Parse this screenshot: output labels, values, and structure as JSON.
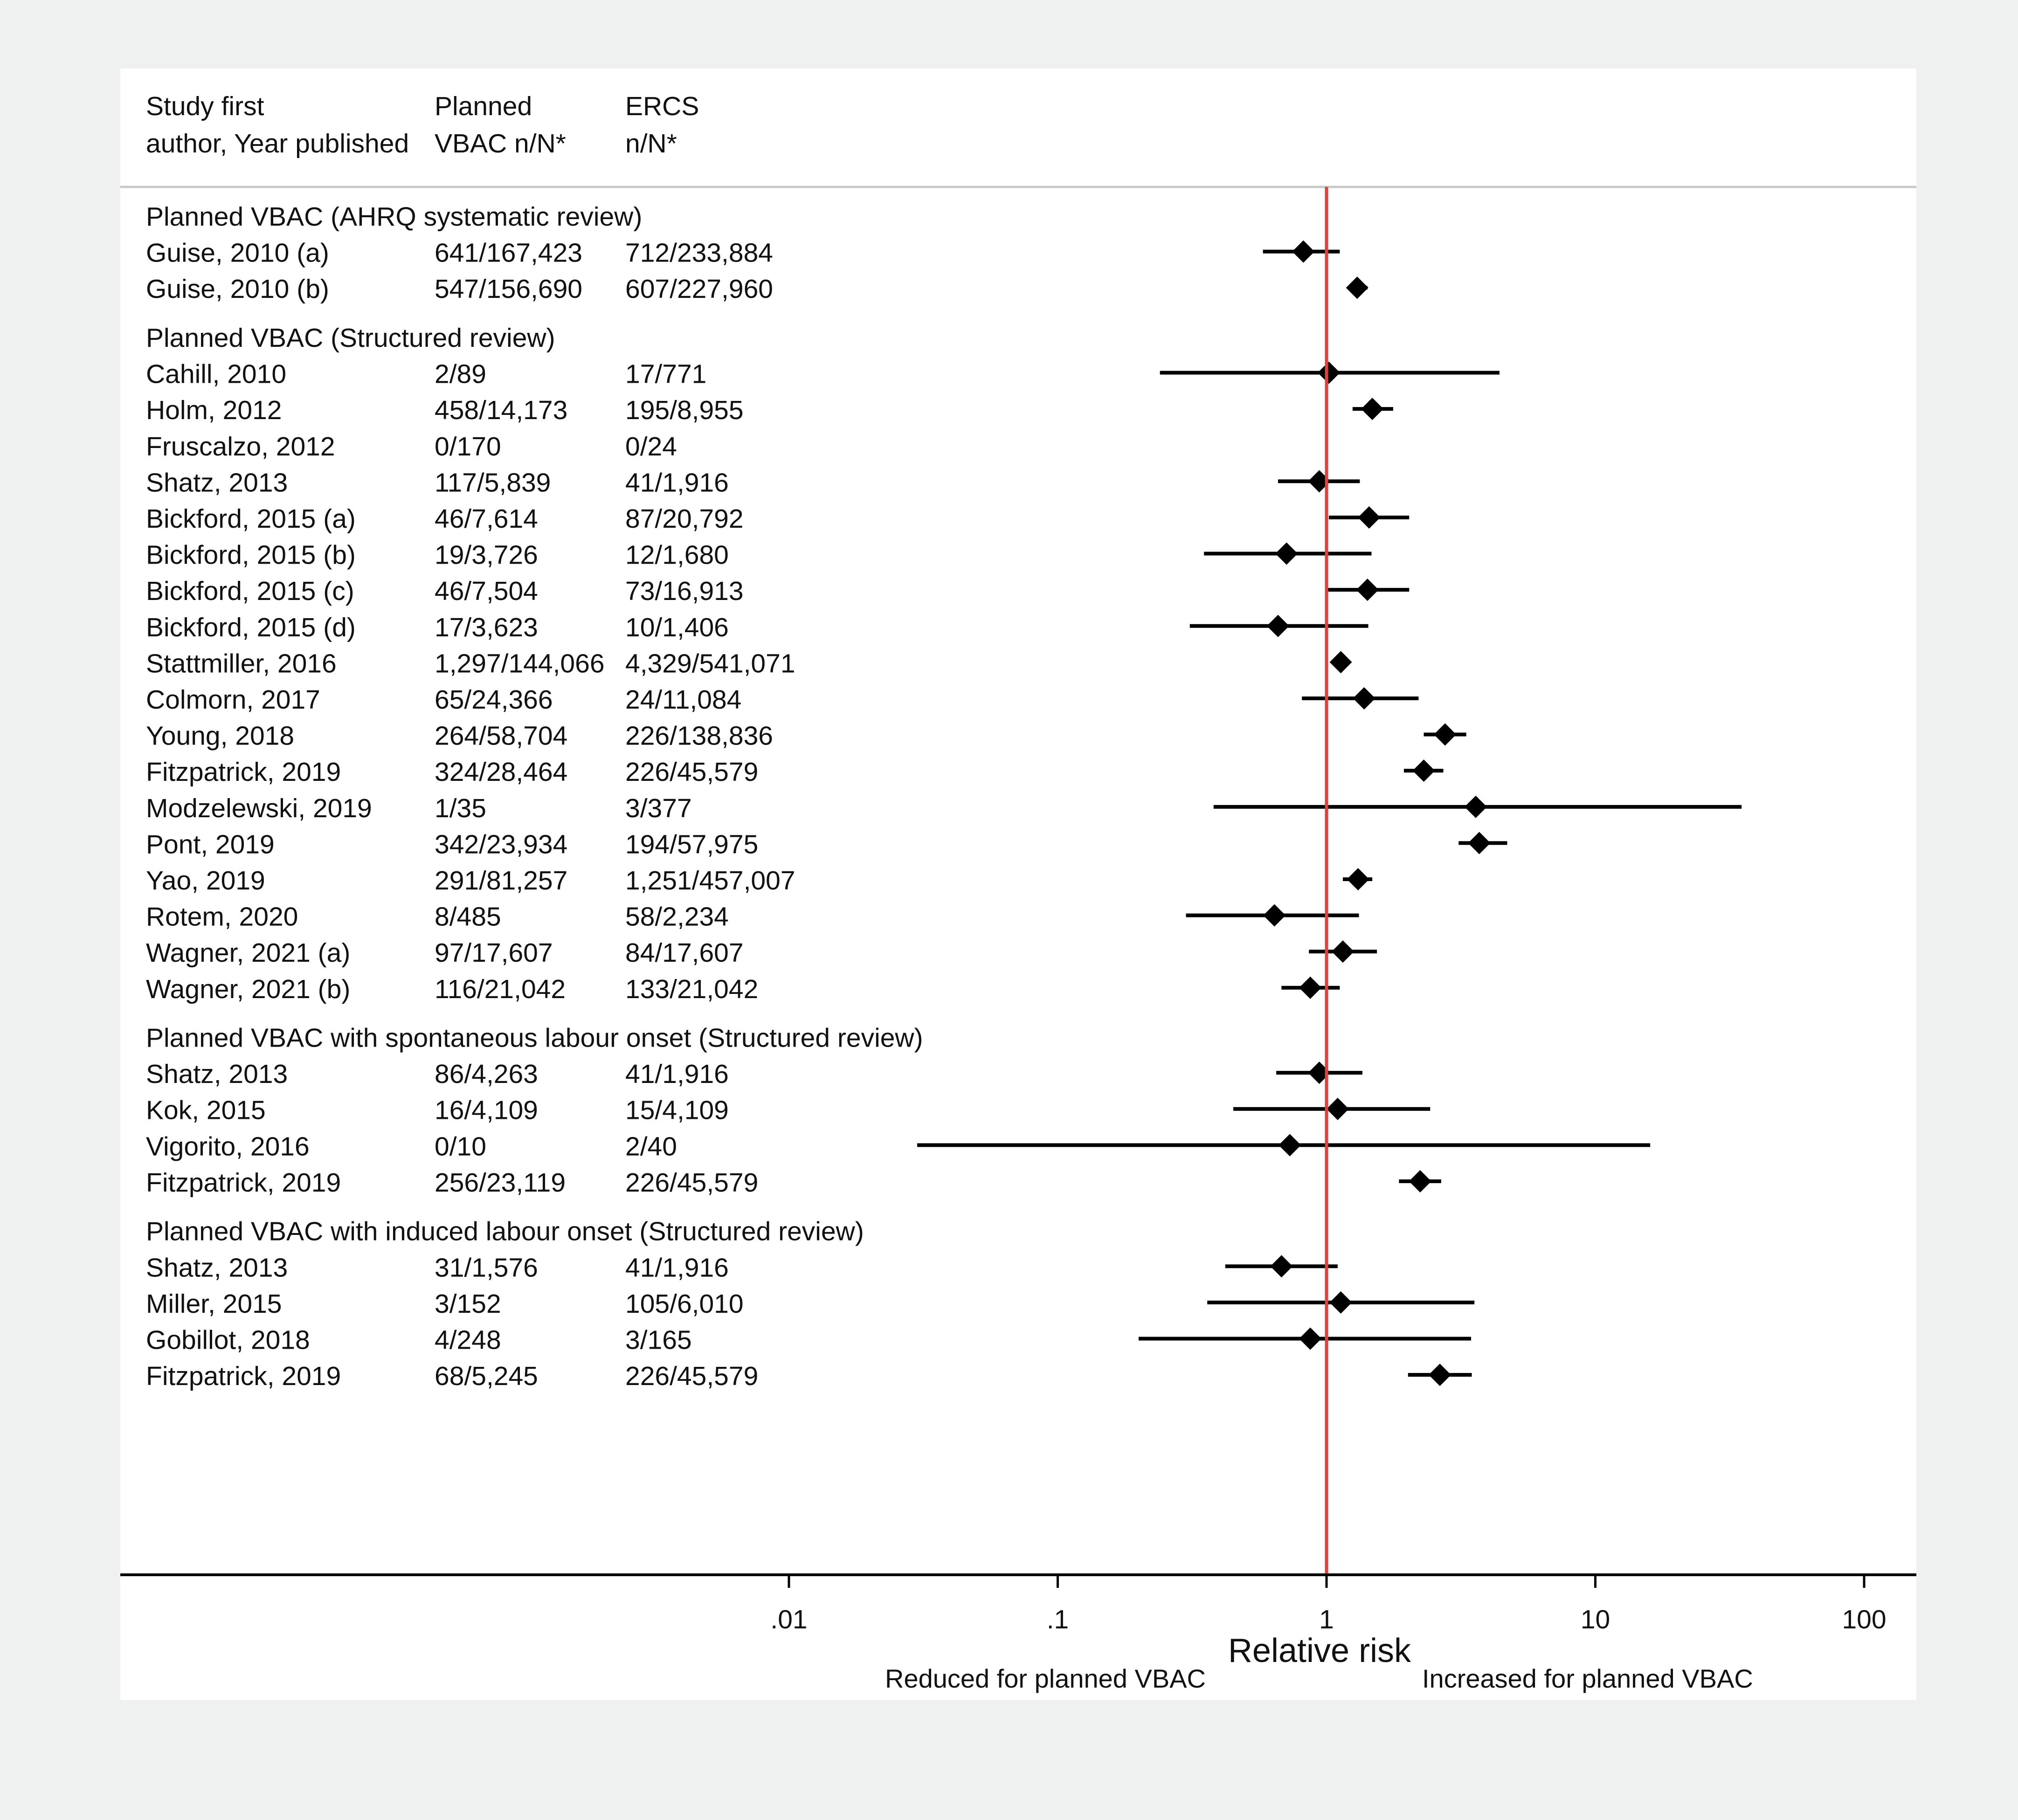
{
  "colors": {
    "outer_background": "#eef1f0",
    "panel_background": "#ffffff",
    "reference_line": "#d9443b",
    "marker": "#000000",
    "header_rule": "#c8c8c8"
  },
  "chart_data": {
    "type": "forest",
    "scale": "log",
    "xlim": [
      0.01,
      100
    ],
    "xlabel": "Relative risk",
    "xticks": [
      {
        "value": 0.01,
        "label": ".01"
      },
      {
        "value": 0.1,
        "label": ".1"
      },
      {
        "value": 1,
        "label": "1"
      },
      {
        "value": 10,
        "label": "10"
      },
      {
        "value": 100,
        "label": "100"
      }
    ],
    "reference_value": 1,
    "direction_labels": {
      "left": "Reduced for planned VBAC",
      "right": "Increased for planned VBAC"
    },
    "header": {
      "col1": [
        "Study first",
        "author, Year published"
      ],
      "col2": [
        "Planned",
        "VBAC n/N*"
      ],
      "col3": [
        "ERCS",
        "n/N*"
      ]
    },
    "groups": [
      {
        "title": "Planned VBAC (AHRQ systematic review)",
        "studies": [
          {
            "study": "Guise, 2010 (a)",
            "vbac": "641/167,423",
            "ercs": "712/233,884",
            "rr": 0.82,
            "lo": 0.58,
            "hi": 1.12
          },
          {
            "study": "Guise, 2010 (b)",
            "vbac": "547/156,690",
            "ercs": "607/227,960",
            "rr": 1.3,
            "lo": 1.2,
            "hi": 1.42
          }
        ]
      },
      {
        "title": "Planned VBAC (Structured review)",
        "studies": [
          {
            "study": "Cahill, 2010",
            "vbac": "2/89",
            "ercs": "17/771",
            "rr": 1.02,
            "lo": 0.24,
            "hi": 4.4
          },
          {
            "study": "Holm, 2012",
            "vbac": "458/14,173",
            "ercs": "195/8,955",
            "rr": 1.48,
            "lo": 1.25,
            "hi": 1.77
          },
          {
            "study": "Fruscalzo, 2012",
            "vbac": "0/170",
            "ercs": "0/24"
          },
          {
            "study": "Shatz, 2013",
            "vbac": "117/5,839",
            "ercs": "41/1,916",
            "rr": 0.94,
            "lo": 0.66,
            "hi": 1.33
          },
          {
            "study": "Bickford, 2015 (a)",
            "vbac": "46/7,614",
            "ercs": "87/20,792",
            "rr": 1.44,
            "lo": 1.02,
            "hi": 2.03
          },
          {
            "study": "Bickford, 2015 (b)",
            "vbac": "19/3,726",
            "ercs": "12/1,680",
            "rr": 0.71,
            "lo": 0.35,
            "hi": 1.47
          },
          {
            "study": "Bickford, 2015 (c)",
            "vbac": "46/7,504",
            "ercs": "73/16,913",
            "rr": 1.42,
            "lo": 0.99,
            "hi": 2.03
          },
          {
            "study": "Bickford, 2015 (d)",
            "vbac": "17/3,623",
            "ercs": "10/1,406",
            "rr": 0.66,
            "lo": 0.31,
            "hi": 1.43
          },
          {
            "study": "Stattmiller, 2016",
            "vbac": "1,297/144,066",
            "ercs": "4,329/541,071",
            "rr": 1.13,
            "lo": 1.06,
            "hi": 1.2
          },
          {
            "study": "Colmorn, 2017",
            "vbac": "65/24,366",
            "ercs": "24/11,084",
            "rr": 1.38,
            "lo": 0.81,
            "hi": 2.2
          },
          {
            "study": "Young, 2018",
            "vbac": "264/58,704",
            "ercs": "226/138,836",
            "rr": 2.76,
            "lo": 2.3,
            "hi": 3.31
          },
          {
            "study": "Fitzpatrick, 2019",
            "vbac": "324/28,464",
            "ercs": "226/45,579",
            "rr": 2.3,
            "lo": 1.94,
            "hi": 2.72
          },
          {
            "study": "Modzelewski, 2019",
            "vbac": "1/35",
            "ercs": "3/377",
            "rr": 3.59,
            "lo": 0.38,
            "hi": 35.0
          },
          {
            "study": "Pont, 2019",
            "vbac": "342/23,934",
            "ercs": "194/57,975",
            "rr": 3.7,
            "lo": 3.1,
            "hi": 4.7
          },
          {
            "study": "Yao, 2019",
            "vbac": "291/81,257",
            "ercs": "1,251/457,007",
            "rr": 1.31,
            "lo": 1.15,
            "hi": 1.48
          },
          {
            "study": "Rotem, 2020",
            "vbac": "8/485",
            "ercs": "58/2,234",
            "rr": 0.64,
            "lo": 0.3,
            "hi": 1.32
          },
          {
            "study": "Wagner, 2021 (a)",
            "vbac": "97/17,607",
            "ercs": "84/17,607",
            "rr": 1.15,
            "lo": 0.86,
            "hi": 1.54
          },
          {
            "study": "Wagner, 2021 (b)",
            "vbac": "116/21,042",
            "ercs": "133/21,042",
            "rr": 0.87,
            "lo": 0.68,
            "hi": 1.12
          }
        ]
      },
      {
        "title": "Planned VBAC with spontaneous labour onset (Structured review)",
        "studies": [
          {
            "study": "Shatz, 2013",
            "vbac": "86/4,263",
            "ercs": "41/1,916",
            "rr": 0.94,
            "lo": 0.65,
            "hi": 1.36
          },
          {
            "study": "Kok, 2015",
            "vbac": "16/4,109",
            "ercs": "15/4,109",
            "rr": 1.1,
            "lo": 0.45,
            "hi": 2.43
          },
          {
            "study": "Vigorito, 2016",
            "vbac": "0/10",
            "ercs": "2/40",
            "rr": 0.73,
            "lo": 0.03,
            "hi": 16.0
          },
          {
            "study": "Fitzpatrick, 2019",
            "vbac": "256/23,119",
            "ercs": "226/45,579",
            "rr": 2.23,
            "lo": 1.86,
            "hi": 2.67
          }
        ]
      },
      {
        "title": "Planned VBAC with induced labour onset (Structured review)",
        "studies": [
          {
            "study": "Shatz, 2013",
            "vbac": "31/1,576",
            "ercs": "41/1,916",
            "rr": 0.68,
            "lo": 0.42,
            "hi": 1.1
          },
          {
            "study": "Miller, 2015",
            "vbac": "3/152",
            "ercs": "105/6,010",
            "rr": 1.13,
            "lo": 0.36,
            "hi": 3.55
          },
          {
            "study": "Gobillot, 2018",
            "vbac": "4/248",
            "ercs": "3/165",
            "rr": 0.87,
            "lo": 0.2,
            "hi": 3.45
          },
          {
            "study": "Fitzpatrick, 2019",
            "vbac": "68/5,245",
            "ercs": "226/45,579",
            "rr": 2.64,
            "lo": 2.01,
            "hi": 3.47
          }
        ]
      }
    ]
  }
}
